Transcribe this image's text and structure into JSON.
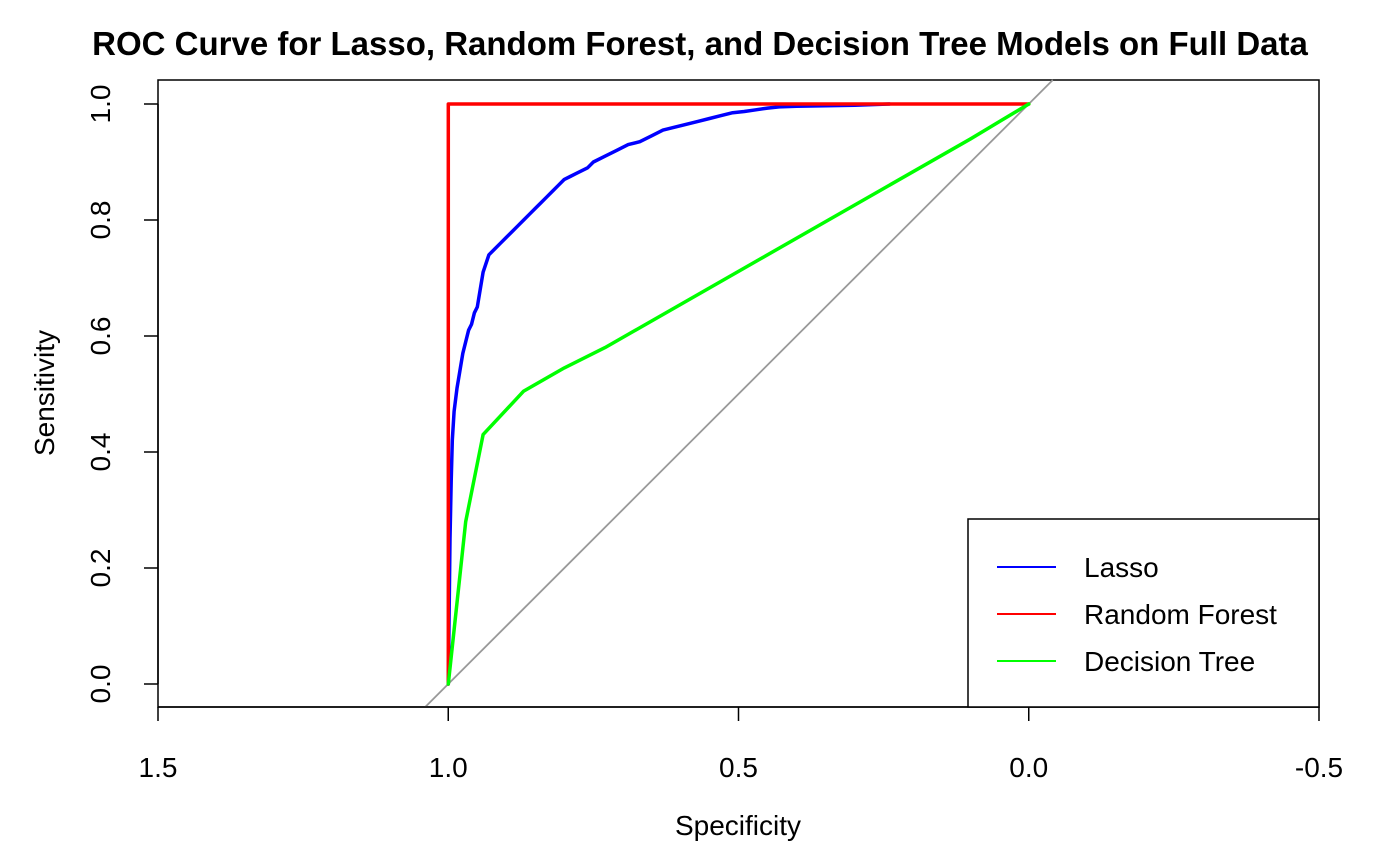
{
  "chart_data": {
    "type": "line",
    "title": "ROC Curve for Lasso, Random Forest, and Decision Tree Models on Full Data",
    "xlabel": "Specificity",
    "ylabel": "Sensitivity",
    "xlim": [
      1.5,
      -0.5
    ],
    "ylim": [
      0.0,
      1.0
    ],
    "x_ticks": [
      1.5,
      1.0,
      0.5,
      0.0,
      -0.5
    ],
    "x_tick_labels": [
      "1.5",
      "1.0",
      "0.5",
      "0.0",
      "-0.5"
    ],
    "y_ticks": [
      0.0,
      0.2,
      0.4,
      0.6,
      0.8,
      1.0
    ],
    "y_tick_labels": [
      "0.0",
      "0.2",
      "0.4",
      "0.6",
      "0.8",
      "1.0"
    ],
    "grid": false,
    "legend_position": "bottom-right",
    "reference_line": {
      "from": [
        1.0,
        0.0
      ],
      "to": [
        0.0,
        1.0
      ],
      "color": "#999999"
    },
    "series": [
      {
        "name": "Lasso",
        "color": "#0000ff",
        "x": [
          1.0,
          0.997,
          0.995,
          0.993,
          0.99,
          0.985,
          0.98,
          0.975,
          0.97,
          0.965,
          0.96,
          0.955,
          0.95,
          0.945,
          0.94,
          0.93,
          0.92,
          0.91,
          0.9,
          0.89,
          0.88,
          0.87,
          0.86,
          0.85,
          0.84,
          0.83,
          0.82,
          0.81,
          0.8,
          0.79,
          0.78,
          0.77,
          0.76,
          0.75,
          0.73,
          0.71,
          0.69,
          0.67,
          0.65,
          0.63,
          0.61,
          0.59,
          0.57,
          0.55,
          0.53,
          0.51,
          0.49,
          0.47,
          0.45,
          0.43,
          0.4,
          0.35,
          0.3,
          0.24
        ],
        "y": [
          0.0,
          0.25,
          0.35,
          0.42,
          0.47,
          0.51,
          0.54,
          0.57,
          0.59,
          0.61,
          0.62,
          0.64,
          0.65,
          0.68,
          0.71,
          0.74,
          0.75,
          0.76,
          0.77,
          0.78,
          0.79,
          0.8,
          0.81,
          0.82,
          0.83,
          0.84,
          0.85,
          0.86,
          0.87,
          0.875,
          0.88,
          0.885,
          0.89,
          0.9,
          0.91,
          0.92,
          0.93,
          0.935,
          0.945,
          0.955,
          0.96,
          0.965,
          0.97,
          0.975,
          0.98,
          0.985,
          0.987,
          0.99,
          0.993,
          0.995,
          0.996,
          0.997,
          0.998,
          1.0
        ]
      },
      {
        "name": "Random Forest",
        "color": "#ff0000",
        "x": [
          1.0,
          1.0,
          0.0
        ],
        "y": [
          0.0,
          1.0,
          1.0
        ]
      },
      {
        "name": "Decision Tree",
        "color": "#00ff00",
        "x": [
          1.0,
          0.97,
          0.94,
          0.87,
          0.8,
          0.73,
          0.1,
          0.05,
          0.0
        ],
        "y": [
          0.0,
          0.28,
          0.43,
          0.505,
          0.545,
          0.58,
          0.94,
          0.97,
          1.0
        ]
      }
    ]
  }
}
